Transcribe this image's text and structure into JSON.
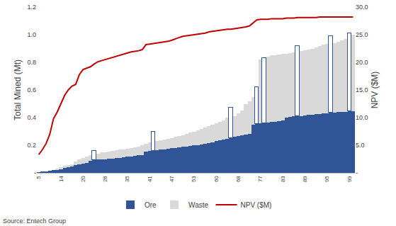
{
  "chart_data": {
    "type": "bar",
    "stacked": true,
    "grid": false,
    "legend": "bottom",
    "source": "Source: Entech Group",
    "y_label": "Total Mined (Mt)",
    "y2_label": "NPV ($M)",
    "categories": [
      "5",
      null,
      null,
      null,
      null,
      null,
      "14",
      null,
      null,
      null,
      null,
      null,
      "20",
      null,
      null,
      null,
      null,
      null,
      "26",
      null,
      null,
      null,
      null,
      null,
      "35",
      null,
      null,
      null,
      null,
      null,
      "41",
      null,
      null,
      null,
      null,
      null,
      "47",
      null,
      null,
      null,
      null,
      null,
      "53",
      null,
      null,
      null,
      null,
      null,
      "60",
      null,
      null,
      null,
      null,
      null,
      "68",
      null,
      null,
      null,
      null,
      null,
      "77",
      null,
      null,
      null,
      null,
      null,
      "83",
      null,
      null,
      null,
      null,
      null,
      "89",
      null,
      null,
      null,
      null,
      null,
      "95",
      null,
      null,
      null,
      null,
      null,
      "99",
      null
    ],
    "ylim": [
      0,
      1.2
    ],
    "yticks": [
      {
        "value": 0,
        "label": "-"
      },
      0.2,
      0.4,
      0.6,
      0.8,
      {
        "value": 1,
        "label": "1.0"
      },
      1.2
    ],
    "y2lim": [
      0,
      30
    ],
    "y2ticks": [
      {
        "value": 0,
        "label": "-"
      },
      {
        "value": 5,
        "label": "5.0"
      },
      {
        "value": 10,
        "label": "10.0"
      },
      {
        "value": 15,
        "label": "15.0"
      },
      {
        "value": 20,
        "label": "20.0"
      },
      {
        "value": 25,
        "label": "25.0"
      },
      {
        "value": 30,
        "label": "30.0"
      }
    ],
    "series": [
      {
        "name": "Ore",
        "type": "bar",
        "color": "#2f5597",
        "values": [
          0.005,
          0.008,
          0.01,
          0.015,
          0.02,
          0.025,
          0.03,
          0.04,
          0.045,
          0.05,
          0.055,
          0.06,
          0.065,
          0.07,
          0.085,
          0.09,
          0.095,
          0.1,
          0.1,
          0.105,
          0.105,
          0.11,
          0.11,
          0.115,
          0.12,
          0.12,
          0.125,
          0.13,
          0.13,
          0.155,
          0.16,
          0.16,
          0.165,
          0.17,
          0.17,
          0.175,
          0.18,
          0.18,
          0.185,
          0.19,
          0.19,
          0.195,
          0.2,
          0.2,
          0.205,
          0.21,
          0.215,
          0.22,
          0.23,
          0.235,
          0.24,
          0.245,
          0.25,
          0.26,
          0.265,
          0.27,
          0.275,
          0.28,
          0.35,
          0.355,
          0.36,
          0.36,
          0.365,
          0.37,
          0.37,
          0.375,
          0.38,
          0.4,
          0.405,
          0.41,
          0.41,
          0.41,
          0.415,
          0.42,
          0.42,
          0.425,
          0.425,
          0.43,
          0.43,
          0.435,
          0.435,
          0.44,
          0.44,
          0.44,
          0.445,
          0.445
        ]
      },
      {
        "name": "Waste",
        "type": "bar",
        "color": "#d9d9d9",
        "colors": [
          "#d9d9d9",
          "#d9d9d9",
          "#d9d9d9",
          "#d9d9d9",
          "#d9d9d9",
          "#d9d9d9",
          "#d9d9d9",
          "#d9d9d9",
          "#d9d9d9",
          "#d9d9d9",
          "#d9d9d9",
          "#d9d9d9",
          "#d9d9d9",
          "#d9d9d9",
          "#d9d9d9",
          "#ffffff",
          "#d9d9d9",
          "#d9d9d9",
          "#d9d9d9",
          "#d9d9d9",
          "#d9d9d9",
          "#d9d9d9",
          "#d9d9d9",
          "#d9d9d9",
          "#d9d9d9",
          "#d9d9d9",
          "#d9d9d9",
          "#d9d9d9",
          "#d9d9d9",
          "#d9d9d9",
          "#d9d9d9",
          "#ffffff",
          "#d9d9d9",
          "#d9d9d9",
          "#d9d9d9",
          "#d9d9d9",
          "#d9d9d9",
          "#d9d9d9",
          "#d9d9d9",
          "#d9d9d9",
          "#d9d9d9",
          "#d9d9d9",
          "#d9d9d9",
          "#d9d9d9",
          "#d9d9d9",
          "#d9d9d9",
          "#d9d9d9",
          "#d9d9d9",
          "#d9d9d9",
          "#d9d9d9",
          "#d9d9d9",
          "#d9d9d9",
          "#ffffff",
          "#d9d9d9",
          "#d9d9d9",
          "#d9d9d9",
          "#d9d9d9",
          "#d9d9d9",
          "#d9d9d9",
          "#ffffff",
          "#d9d9d9",
          "#ffffff",
          "#d9d9d9",
          "#d9d9d9",
          "#d9d9d9",
          "#d9d9d9",
          "#d9d9d9",
          "#d9d9d9",
          "#d9d9d9",
          "#d9d9d9",
          "#ffffff",
          "#d9d9d9",
          "#d9d9d9",
          "#d9d9d9",
          "#d9d9d9",
          "#d9d9d9",
          "#d9d9d9",
          "#d9d9d9",
          "#d9d9d9",
          "#ffffff",
          "#d9d9d9",
          "#d9d9d9",
          "#d9d9d9",
          "#d9d9d9",
          "#ffffff",
          "#d9d9d9"
        ],
        "values": [
          0,
          0,
          0,
          0,
          0,
          0.005,
          0.01,
          0.01,
          0.01,
          0.01,
          0.025,
          0.04,
          0.045,
          0.05,
          0.045,
          0.07,
          0.045,
          0.05,
          0.05,
          0.05,
          0.055,
          0.055,
          0.06,
          0.055,
          0.055,
          0.06,
          0.06,
          0.06,
          0.07,
          0.055,
          0.06,
          0.14,
          0.065,
          0.065,
          0.07,
          0.07,
          0.07,
          0.08,
          0.08,
          0.08,
          0.09,
          0.095,
          0.1,
          0.11,
          0.115,
          0.12,
          0.125,
          0.13,
          0.13,
          0.135,
          0.14,
          0.155,
          0.22,
          0.15,
          0.165,
          0.18,
          0.225,
          0.24,
          0.2,
          0.265,
          0.46,
          0.47,
          0.475,
          0.48,
          0.48,
          0.48,
          0.48,
          0.46,
          0.46,
          0.46,
          0.51,
          0.47,
          0.47,
          0.47,
          0.48,
          0.485,
          0.495,
          0.5,
          0.505,
          0.555,
          0.505,
          0.51,
          0.52,
          0.53,
          0.565,
          0.555
        ]
      },
      {
        "name": "NPV ($M)",
        "type": "line",
        "axis": "y2",
        "color": "#c00000",
        "values": [
          3.3,
          4.2,
          5.3,
          7.0,
          9.8,
          11.0,
          12.5,
          14.0,
          15.0,
          15.7,
          16.0,
          17.8,
          18.7,
          19.0,
          19.2,
          19.7,
          20.1,
          20.3,
          20.5,
          20.8,
          21.0,
          21.2,
          21.4,
          21.6,
          21.8,
          21.9,
          22.0,
          22.1,
          22.3,
          23.2,
          23.3,
          23.4,
          23.5,
          23.6,
          23.7,
          23.8,
          24.0,
          24.3,
          24.5,
          24.7,
          24.8,
          24.9,
          25.0,
          25.1,
          25.2,
          25.3,
          25.5,
          25.6,
          25.7,
          25.8,
          25.9,
          26.0,
          26.0,
          26.1,
          26.2,
          26.3,
          26.4,
          26.6,
          27.1,
          27.7,
          27.8,
          27.8,
          27.8,
          27.9,
          27.9,
          27.9,
          27.9,
          28.0,
          28.0,
          28.0,
          28.1,
          28.1,
          28.1,
          28.1,
          28.1,
          28.1,
          28.2,
          28.2,
          28.2,
          28.2,
          28.2,
          28.2,
          28.2,
          28.2,
          28.2,
          28.2
        ]
      }
    ]
  }
}
